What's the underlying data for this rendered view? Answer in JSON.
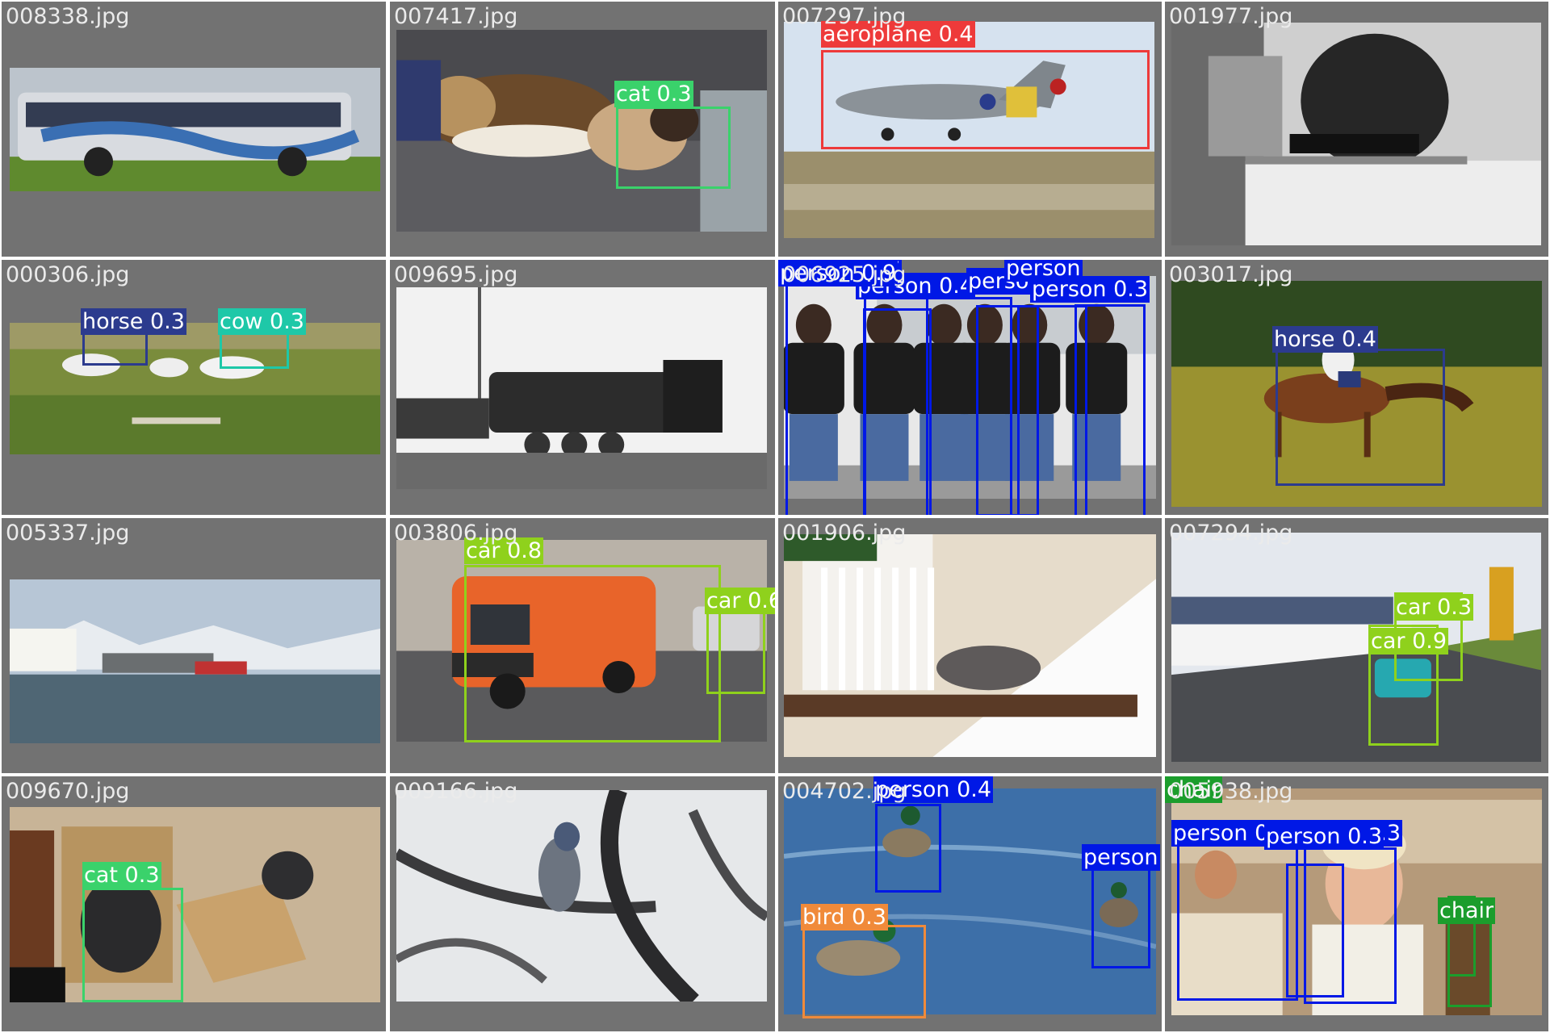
{
  "colors": {
    "background": "#727272",
    "filename": "#ebebeb",
    "label_text": "#ffffff",
    "person": "#0018e6",
    "horse": "#2c3b8e",
    "cow": "#1ec8a8",
    "cat": "#3ad26b",
    "car": "#8fd11c",
    "aeroplane": "#ee3a3a",
    "bird": "#f08a3a",
    "chair": "#1b9d2c"
  },
  "tiles": [
    {
      "file": "008338.jpg",
      "scene": "bus",
      "detections": []
    },
    {
      "file": "007417.jpg",
      "scene": "dogcat",
      "detections": [
        {
          "label": "cat 0.3",
          "cls": "cat"
        }
      ]
    },
    {
      "file": "007297.jpg",
      "scene": "plane",
      "detections": [
        {
          "label": "aeroplane 0.4",
          "cls": "aeroplane"
        }
      ]
    },
    {
      "file": "001977.jpg",
      "scene": "bw",
      "detections": []
    },
    {
      "file": "000306.jpg",
      "scene": "field",
      "detections": [
        {
          "label": "horse 0.3",
          "cls": "horse"
        },
        {
          "label": "cow 0.3",
          "cls": "cow"
        }
      ]
    },
    {
      "file": "009695.jpg",
      "scene": "train",
      "detections": []
    },
    {
      "file": "006925.jpg",
      "scene": "people",
      "detections": [
        {
          "label": "person 0.7",
          "cls": "person"
        },
        {
          "label": "person 0.4",
          "cls": "person"
        },
        {
          "label": "person 0.",
          "cls": "person"
        },
        {
          "label": "person 0.9",
          "cls": "person"
        },
        {
          "label": "person 0.3",
          "cls": "person"
        },
        {
          "label": "person",
          "cls": "person"
        }
      ]
    },
    {
      "file": "003017.jpg",
      "scene": "rider",
      "detections": [
        {
          "label": "horse 0.4",
          "cls": "horse"
        }
      ]
    },
    {
      "file": "005337.jpg",
      "scene": "harbor",
      "detections": []
    },
    {
      "file": "003806.jpg",
      "scene": "van",
      "detections": [
        {
          "label": "car 0.8",
          "cls": "car"
        },
        {
          "label": "car 0.6",
          "cls": "car"
        }
      ]
    },
    {
      "file": "001906.jpg",
      "scene": "stairs",
      "detections": []
    },
    {
      "file": "007294.jpg",
      "scene": "track",
      "detections": [
        {
          "label": "car 0.3",
          "cls": "car"
        },
        {
          "label": "car 0.9",
          "cls": "car"
        }
      ]
    },
    {
      "file": "009670.jpg",
      "scene": "boxes",
      "detections": [
        {
          "label": "cat 0.3",
          "cls": "cat"
        }
      ]
    },
    {
      "file": "009166.jpg",
      "scene": "jay",
      "detections": []
    },
    {
      "file": "004702.jpg",
      "scene": "ducks",
      "detections": [
        {
          "label": "person 0.4",
          "cls": "person"
        },
        {
          "label": "person",
          "cls": "person"
        },
        {
          "label": "bird 0.3",
          "cls": "bird"
        }
      ]
    },
    {
      "file": "005938.jpg",
      "scene": "woman",
      "detections": [
        {
          "label": "person 0.5",
          "cls": "person"
        },
        {
          "label": "person 0.3",
          "cls": "person"
        },
        {
          "label": "person 0.3",
          "cls": "person"
        },
        {
          "label": "chair",
          "cls": "chair"
        },
        {
          "label": "chair",
          "cls": "chair"
        }
      ]
    }
  ]
}
